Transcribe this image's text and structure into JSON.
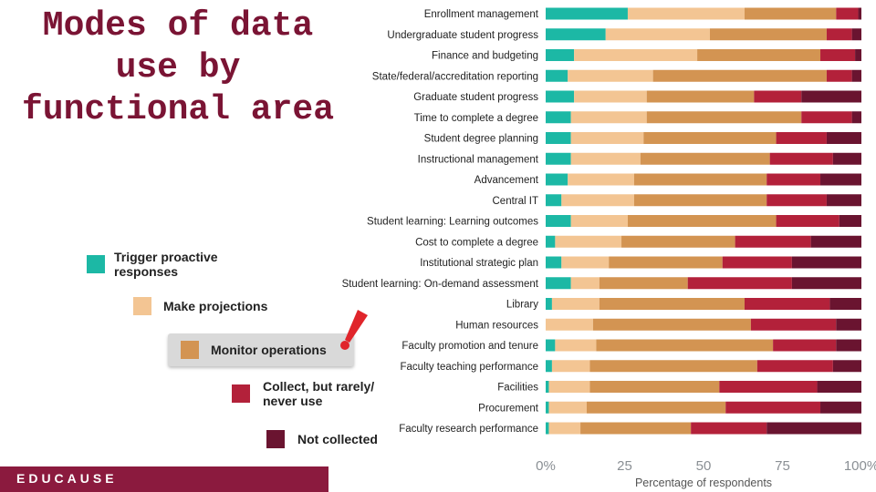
{
  "title": "Modes of data use by functional area",
  "footer_brand": "EDUCAUSE",
  "legend": [
    {
      "label": "Trigger proactive responses",
      "color": "#1cb8a5"
    },
    {
      "label": "Make projections",
      "color": "#f3c593"
    },
    {
      "label": "Monitor operations",
      "color": "#d39452"
    },
    {
      "label": "Collect, but rarely/ never use",
      "color": "#b3213a"
    },
    {
      "label": "Not collected",
      "color": "#6a1430"
    }
  ],
  "chart_data": {
    "type": "bar",
    "orientation": "horizontal",
    "stacked": true,
    "categories": [
      "Enrollment management",
      "Undergraduate student progress",
      "Finance and budgeting",
      "State/federal/accreditation reporting",
      "Graduate student progress",
      "Time to complete a degree",
      "Student degree planning",
      "Instructional management",
      "Advancement",
      "Central IT",
      "Student learning: Learning outcomes",
      "Cost to complete a degree",
      "Institutional strategic plan",
      "Student learning: On-demand assessment",
      "Library",
      "Human resources",
      "Faculty promotion and tenure",
      "Faculty teaching performance",
      "Facilities",
      "Procurement",
      "Faculty research performance"
    ],
    "series": [
      {
        "name": "Trigger proactive responses",
        "values": [
          26,
          19,
          9,
          7,
          9,
          8,
          8,
          8,
          7,
          5,
          8,
          3,
          5,
          8,
          2,
          0,
          3,
          2,
          1,
          1,
          1
        ]
      },
      {
        "name": "Make projections",
        "values": [
          37,
          33,
          39,
          27,
          23,
          24,
          23,
          22,
          21,
          23,
          18,
          21,
          15,
          9,
          15,
          15,
          13,
          12,
          13,
          12,
          10
        ]
      },
      {
        "name": "Monitor operations",
        "values": [
          29,
          37,
          39,
          55,
          34,
          49,
          42,
          41,
          42,
          42,
          47,
          36,
          36,
          28,
          46,
          50,
          56,
          53,
          41,
          44,
          35
        ]
      },
      {
        "name": "Collect, but rarely/ never use",
        "values": [
          7,
          8,
          11,
          8,
          15,
          16,
          16,
          20,
          17,
          19,
          20,
          24,
          22,
          33,
          27,
          27,
          20,
          24,
          31,
          30,
          24
        ]
      },
      {
        "name": "Not collected",
        "values": [
          1,
          3,
          2,
          3,
          19,
          3,
          11,
          9,
          13,
          11,
          7,
          16,
          22,
          22,
          10,
          8,
          8,
          9,
          14,
          13,
          30
        ]
      }
    ],
    "x_ticks": [
      "0%",
      "25",
      "50",
      "75",
      "100%"
    ],
    "xlim": [
      0,
      100
    ],
    "xlabel": "Percentage of respondents",
    "ylabel": ""
  }
}
